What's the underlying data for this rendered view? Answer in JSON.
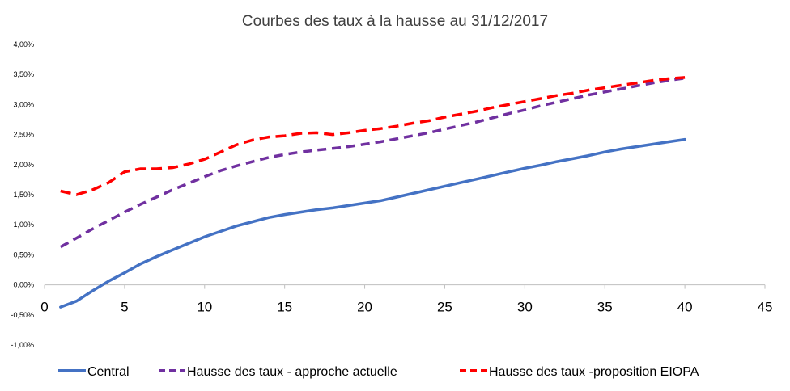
{
  "chart_data": {
    "type": "line",
    "title": "Courbes des taux à la hausse au 31/12/2017",
    "xlabel": "",
    "ylabel": "",
    "xlim": [
      0,
      45
    ],
    "ylim": [
      -1.0,
      4.0
    ],
    "x_ticks": [
      "0",
      "5",
      "10",
      "15",
      "20",
      "25",
      "30",
      "35",
      "40",
      "45"
    ],
    "y_ticks": [
      "-1,00%",
      "-0,50%",
      "0,00%",
      "0,50%",
      "1,00%",
      "1,50%",
      "2,00%",
      "2,50%",
      "3,00%",
      "3,50%",
      "4,00%"
    ],
    "grid": false,
    "legend_position": "bottom",
    "x": [
      1,
      2,
      3,
      4,
      5,
      6,
      7,
      8,
      9,
      10,
      11,
      12,
      13,
      14,
      15,
      16,
      17,
      18,
      19,
      20,
      21,
      22,
      23,
      24,
      25,
      26,
      27,
      28,
      29,
      30,
      31,
      32,
      33,
      34,
      35,
      36,
      37,
      38,
      39,
      40
    ],
    "series": [
      {
        "name": "Central",
        "color": "#4472c4",
        "dash": "solid",
        "values": [
          -0.37,
          -0.27,
          -0.1,
          0.06,
          0.2,
          0.35,
          0.47,
          0.58,
          0.69,
          0.8,
          0.89,
          0.98,
          1.05,
          1.12,
          1.17,
          1.21,
          1.25,
          1.28,
          1.32,
          1.36,
          1.4,
          1.46,
          1.52,
          1.58,
          1.64,
          1.7,
          1.76,
          1.82,
          1.88,
          1.94,
          1.99,
          2.05,
          2.1,
          2.15,
          2.21,
          2.26,
          2.3,
          2.34,
          2.38,
          2.42
        ]
      },
      {
        "name": "Hausse des taux - approche actuelle",
        "color": "#7030a0",
        "dash": "dashed",
        "values": [
          0.63,
          0.78,
          0.93,
          1.07,
          1.21,
          1.34,
          1.46,
          1.58,
          1.69,
          1.8,
          1.9,
          1.98,
          2.05,
          2.12,
          2.17,
          2.21,
          2.24,
          2.27,
          2.3,
          2.34,
          2.38,
          2.43,
          2.48,
          2.53,
          2.59,
          2.65,
          2.71,
          2.78,
          2.85,
          2.91,
          2.98,
          3.04,
          3.1,
          3.16,
          3.21,
          3.26,
          3.31,
          3.36,
          3.4,
          3.44
        ]
      },
      {
        "name": "Hausse des taux -proposition EIOPA",
        "color": "#ff0000",
        "dash": "dashed",
        "values": [
          1.56,
          1.5,
          1.58,
          1.7,
          1.88,
          1.93,
          1.93,
          1.95,
          2.01,
          2.09,
          2.21,
          2.33,
          2.41,
          2.46,
          2.48,
          2.52,
          2.53,
          2.5,
          2.53,
          2.57,
          2.6,
          2.64,
          2.69,
          2.73,
          2.79,
          2.84,
          2.89,
          2.95,
          3.0,
          3.05,
          3.1,
          3.15,
          3.19,
          3.24,
          3.28,
          3.32,
          3.36,
          3.4,
          3.43,
          3.45
        ]
      }
    ]
  }
}
